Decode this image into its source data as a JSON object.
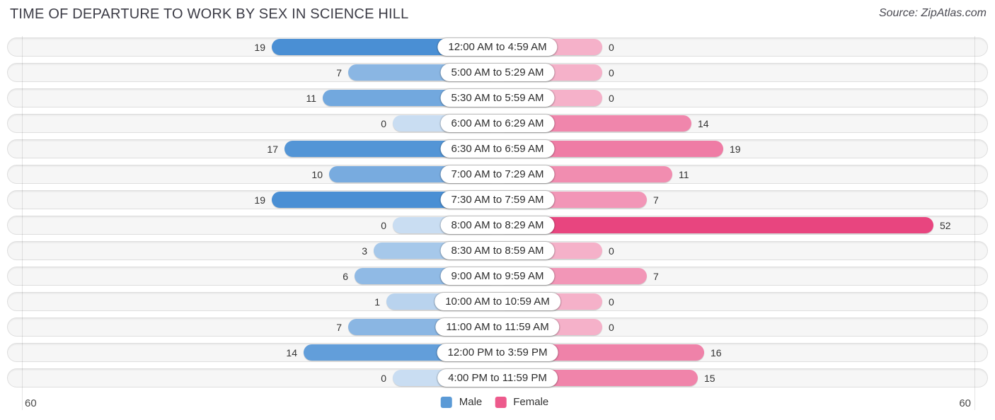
{
  "title": "TIME OF DEPARTURE TO WORK BY SEX IN SCIENCE HILL",
  "source": "Source: ZipAtlas.com",
  "legend": {
    "male": "Male",
    "female": "Female"
  },
  "axis": {
    "left_max": "60",
    "right_max": "60"
  },
  "colors": {
    "male_bar_full": "#4a8fd4",
    "female_bar_full": "#e8457f",
    "male_legend": "#5b9ad6",
    "female_legend": "#ed5a8c",
    "male_zero_stub": "#c9ddf2",
    "female_zero_stub": "#f5b1c9"
  },
  "chart_data": {
    "type": "bar",
    "variant": "diverging-horizontal",
    "title": "TIME OF DEPARTURE TO WORK BY SEX IN SCIENCE HILL",
    "categories": [
      "12:00 AM to 4:59 AM",
      "5:00 AM to 5:29 AM",
      "5:30 AM to 5:59 AM",
      "6:00 AM to 6:29 AM",
      "6:30 AM to 6:59 AM",
      "7:00 AM to 7:29 AM",
      "7:30 AM to 7:59 AM",
      "8:00 AM to 8:29 AM",
      "8:30 AM to 8:59 AM",
      "9:00 AM to 9:59 AM",
      "10:00 AM to 10:59 AM",
      "11:00 AM to 11:59 AM",
      "12:00 PM to 3:59 PM",
      "4:00 PM to 11:59 PM"
    ],
    "series": [
      {
        "name": "Male",
        "values": [
          19,
          7,
          11,
          0,
          17,
          10,
          19,
          0,
          3,
          6,
          1,
          7,
          14,
          0
        ]
      },
      {
        "name": "Female",
        "values": [
          0,
          0,
          0,
          14,
          19,
          11,
          7,
          52,
          0,
          7,
          0,
          0,
          16,
          15
        ]
      }
    ],
    "xlim": [
      0,
      60
    ],
    "grid": "edge-ticks-only",
    "legend_position": "bottom"
  }
}
